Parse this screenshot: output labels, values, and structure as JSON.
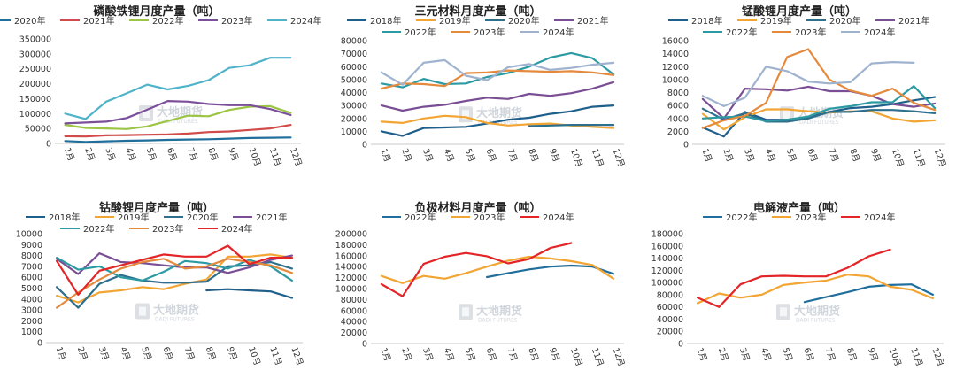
{
  "watermark": {
    "text": "大地期货",
    "sub": "DADI FUTURES"
  },
  "chart_data": [
    {
      "type": "line",
      "title": "磷酸铁锂月度产量（吨）",
      "categories": [
        "1月",
        "2月",
        "3月",
        "4月",
        "5月",
        "6月",
        "7月",
        "8月",
        "9月",
        "10月",
        "11月",
        "12月"
      ],
      "ylim": [
        0,
        350000
      ],
      "yticks": [
        "0",
        "50000",
        "100000",
        "150000",
        "200000",
        "250000",
        "300000",
        "350000"
      ],
      "legend_position": "top",
      "grid": false,
      "series": [
        {
          "name": "2020年",
          "color": "#1f6e9c",
          "values": [
            8000,
            5000,
            7000,
            9000,
            10000,
            12000,
            13000,
            14000,
            16000,
            18000,
            19000,
            20000
          ]
        },
        {
          "name": "2021年",
          "color": "#d24b4b",
          "values": [
            24000,
            23000,
            27000,
            28000,
            29000,
            30000,
            33000,
            38000,
            40000,
            45000,
            50000,
            62000
          ]
        },
        {
          "name": "2022年",
          "color": "#9cc445",
          "values": [
            62000,
            52000,
            50000,
            48000,
            57000,
            75000,
            93000,
            91000,
            112000,
            123000,
            125000,
            102000
          ]
        },
        {
          "name": "2023年",
          "color": "#7c4f9a",
          "values": [
            67000,
            70000,
            73000,
            85000,
            113000,
            142000,
            140000,
            132000,
            128000,
            128000,
            115000,
            95000
          ]
        },
        {
          "name": "2024年",
          "color": "#4fb3c9",
          "values": [
            100000,
            82000,
            140000,
            168000,
            197000,
            181000,
            193000,
            212000,
            253000,
            262000,
            287000,
            287000
          ]
        }
      ]
    },
    {
      "type": "line",
      "title": "三元材料月度产量（吨）",
      "categories": [
        "1月",
        "2月",
        "3月",
        "4月",
        "5月",
        "6月",
        "7月",
        "8月",
        "9月",
        "10月",
        "11月",
        "12月"
      ],
      "ylim": [
        0,
        80000
      ],
      "yticks": [
        "0",
        "10000",
        "20000",
        "30000",
        "40000",
        "50000",
        "60000",
        "70000",
        "80000"
      ],
      "legend_position": "top",
      "grid": false,
      "series": [
        {
          "name": "2018年",
          "color": "#1f5f8b",
          "values": [
            10000,
            6500,
            12500,
            13000,
            13500,
            16000,
            19000,
            20500,
            23500,
            25500,
            29000,
            30000
          ]
        },
        {
          "name": "2019年",
          "color": "#f2a533",
          "values": [
            17500,
            16500,
            20000,
            22000,
            21000,
            16500,
            14500,
            15500,
            16000,
            14500,
            13500,
            12500
          ]
        },
        {
          "name": "2020年",
          "color": "#2e6f8e",
          "values": [
            null,
            null,
            null,
            null,
            null,
            null,
            null,
            14000,
            14500,
            15000,
            15000,
            15000
          ]
        },
        {
          "name": "2021年",
          "color": "#7a4e94",
          "values": [
            30000,
            26000,
            29000,
            30500,
            33500,
            36000,
            35000,
            39000,
            37500,
            39500,
            43000,
            48000
          ]
        },
        {
          "name": "2022年",
          "color": "#2c9aa3",
          "values": [
            47000,
            44000,
            50500,
            46500,
            47000,
            52000,
            55000,
            60000,
            67000,
            70500,
            66500,
            54000
          ]
        },
        {
          "name": "2023年",
          "color": "#e58a3c",
          "values": [
            43000,
            47000,
            46500,
            45000,
            55000,
            55500,
            57000,
            56500,
            56000,
            56500,
            55500,
            53500
          ]
        },
        {
          "name": "2024年",
          "color": "#9fb3cf",
          "values": [
            55500,
            46000,
            63000,
            65000,
            53000,
            49500,
            59500,
            62000,
            57500,
            59000,
            61500,
            63000
          ]
        }
      ]
    },
    {
      "type": "line",
      "title": "锰酸锂月度产量（吨）",
      "categories": [
        "1月",
        "2月",
        "3月",
        "4月",
        "5月",
        "6月",
        "7月",
        "8月",
        "9月",
        "10月",
        "11月",
        "12月"
      ],
      "ylim": [
        0,
        16000
      ],
      "yticks": [
        "0",
        "2000",
        "4000",
        "6000",
        "8000",
        "10000",
        "12000",
        "14000",
        "16000"
      ],
      "legend_position": "top",
      "grid": false,
      "series": [
        {
          "name": "2018年",
          "color": "#1f5f8b",
          "values": [
            2600,
            1200,
            5000,
            3800,
            3800,
            4200,
            5000,
            5600,
            5800,
            6200,
            6800,
            7300
          ]
        },
        {
          "name": "2019年",
          "color": "#f2a533",
          "values": [
            4700,
            2300,
            4200,
            5400,
            5400,
            5100,
            4900,
            5100,
            5100,
            4000,
            3500,
            3700
          ]
        },
        {
          "name": "2020年",
          "color": "#2e6f8e",
          "values": [
            5500,
            3800,
            4800,
            3500,
            3500,
            4000,
            5000,
            5000,
            5300,
            5300,
            5100,
            4800
          ]
        },
        {
          "name": "2021年",
          "color": "#7a4e94",
          "values": [
            7000,
            4000,
            8600,
            8500,
            8300,
            8900,
            8200,
            8200,
            7500,
            6200,
            5800,
            6300
          ]
        },
        {
          "name": "2022年",
          "color": "#2c9aa3",
          "values": [
            4000,
            4200,
            4300,
            3600,
            3800,
            4300,
            5500,
            5900,
            6500,
            6500,
            9000,
            5600
          ]
        },
        {
          "name": "2023年",
          "color": "#e58a3c",
          "values": [
            2500,
            3700,
            4400,
            6400,
            13500,
            14700,
            10000,
            8300,
            7500,
            8600,
            6400,
            5300
          ]
        },
        {
          "name": "2024年",
          "color": "#9fb3cf",
          "values": [
            7500,
            5900,
            7200,
            12000,
            11300,
            9700,
            9400,
            9600,
            12500,
            12700,
            12600,
            null
          ]
        }
      ]
    },
    {
      "type": "line",
      "title": "钴酸锂月度产量（吨）",
      "categories": [
        "1月",
        "2月",
        "3月",
        "4月",
        "5月",
        "6月",
        "7月",
        "8月",
        "9月",
        "10月",
        "11月",
        "12月"
      ],
      "ylim": [
        0,
        10000
      ],
      "yticks": [
        "0",
        "1000",
        "2000",
        "3000",
        "4000",
        "5000",
        "6000",
        "7000",
        "8000",
        "9000",
        "10000"
      ],
      "legend_position": "top",
      "grid": false,
      "series": [
        {
          "name": "2018年",
          "color": "#1f5f8b",
          "values": [
            null,
            null,
            null,
            null,
            null,
            null,
            null,
            4800,
            4900,
            4800,
            4700,
            4100
          ]
        },
        {
          "name": "2019年",
          "color": "#f2a533",
          "values": [
            4300,
            3700,
            4600,
            4800,
            5100,
            4900,
            5400,
            5800,
            7900,
            7900,
            8100,
            7800
          ]
        },
        {
          "name": "2020年",
          "color": "#2e6f8e",
          "values": [
            5100,
            3200,
            5400,
            6200,
            5700,
            5500,
            5500,
            5600,
            7000,
            7100,
            7400,
            6800
          ]
        },
        {
          "name": "2021年",
          "color": "#7a4e94",
          "values": [
            7700,
            6300,
            8200,
            7400,
            7300,
            7100,
            6900,
            6900,
            6400,
            6900,
            7600,
            8000
          ]
        },
        {
          "name": "2022年",
          "color": "#2c9aa3",
          "values": [
            7800,
            6700,
            7000,
            6000,
            5700,
            6500,
            7500,
            7300,
            6800,
            7600,
            7000,
            5700
          ]
        },
        {
          "name": "2023年",
          "color": "#e58a3c",
          "values": [
            3200,
            4600,
            5800,
            6800,
            7400,
            7700,
            6800,
            7000,
            7700,
            7400,
            7100,
            6400
          ]
        },
        {
          "name": "2024年",
          "color": "#e32528",
          "values": [
            7500,
            4400,
            6600,
            7100,
            7600,
            8100,
            7900,
            7900,
            8900,
            7200,
            7800,
            7800
          ]
        }
      ]
    },
    {
      "type": "line",
      "title": "负极材料月度产量（吨）",
      "categories": [
        "1月",
        "2月",
        "3月",
        "4月",
        "5月",
        "6月",
        "7月",
        "8月",
        "9月",
        "10月",
        "11月",
        "12月"
      ],
      "ylim": [
        0,
        200000
      ],
      "yticks": [
        "0",
        "20000",
        "40000",
        "60000",
        "80000",
        "100000",
        "120000",
        "140000",
        "160000",
        "180000",
        "200000"
      ],
      "legend_position": "top",
      "grid": false,
      "series": [
        {
          "name": "2022年",
          "color": "#1f6e9c",
          "values": [
            null,
            null,
            null,
            null,
            null,
            121000,
            128000,
            135000,
            140000,
            142000,
            140000,
            127000
          ]
        },
        {
          "name": "2023年",
          "color": "#f2a533",
          "values": [
            123000,
            110000,
            123000,
            118000,
            128000,
            140000,
            151000,
            158000,
            155000,
            150000,
            143000,
            118000
          ]
        },
        {
          "name": "2024年",
          "color": "#e32528",
          "values": [
            108000,
            86000,
            145000,
            158000,
            165000,
            159000,
            146000,
            154000,
            174000,
            183000,
            null,
            null
          ]
        }
      ]
    },
    {
      "type": "line",
      "title": "电解液产量（吨）",
      "categories": [
        "1月",
        "2月",
        "3月",
        "4月",
        "5月",
        "6月",
        "7月",
        "8月",
        "9月",
        "10月",
        "11月",
        "12月"
      ],
      "ylim": [
        0,
        180000
      ],
      "yticks": [
        "0",
        "20000",
        "40000",
        "60000",
        "80000",
        "100000",
        "120000",
        "140000",
        "160000",
        "180000"
      ],
      "legend_position": "top",
      "grid": false,
      "series": [
        {
          "name": "2022年",
          "color": "#1f6e9c",
          "values": [
            null,
            null,
            null,
            null,
            null,
            68000,
            76000,
            84000,
            93000,
            96000,
            97000,
            80000
          ]
        },
        {
          "name": "2023年",
          "color": "#f2a533",
          "values": [
            66000,
            82000,
            75000,
            80000,
            96000,
            100000,
            103000,
            113000,
            110000,
            93000,
            88000,
            74000
          ]
        },
        {
          "name": "2024年",
          "color": "#e32528",
          "values": [
            75000,
            60000,
            97000,
            110000,
            111000,
            110000,
            110000,
            124000,
            143000,
            154000,
            null,
            null
          ]
        }
      ]
    }
  ]
}
